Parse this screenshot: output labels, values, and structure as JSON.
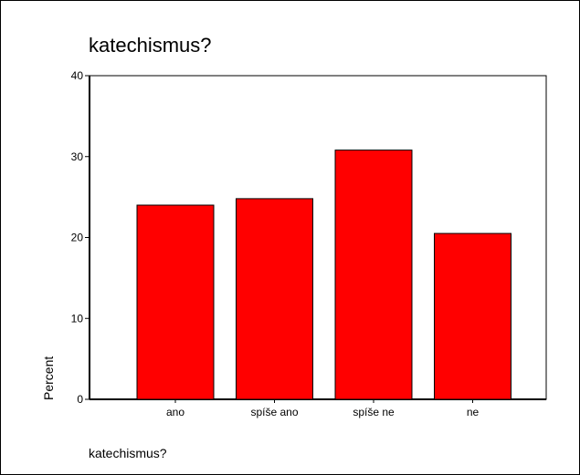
{
  "chart_data": {
    "type": "bar",
    "title": "katechismus?",
    "xlabel": "katechismus?",
    "ylabel": "Percent",
    "categories": [
      "ano",
      "spíše ano",
      "spíše ne",
      "ne"
    ],
    "values": [
      24.0,
      24.8,
      30.8,
      20.5
    ],
    "ylim": [
      0,
      40
    ],
    "yticks": [
      0,
      10,
      20,
      30,
      40
    ],
    "bar_color": "#ff0000",
    "grid": false
  }
}
